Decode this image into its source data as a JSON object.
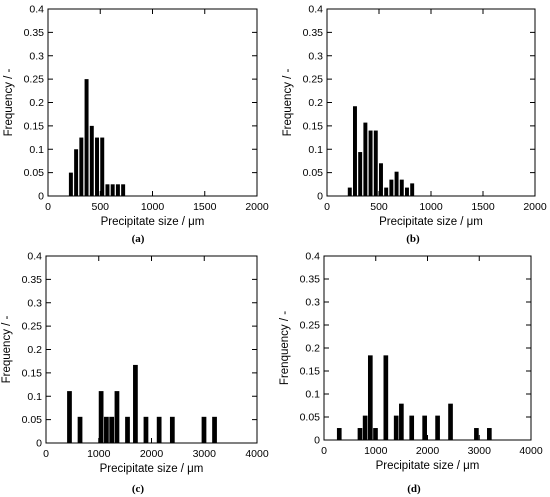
{
  "chart_data": [
    {
      "panel_label": "(a)",
      "type": "bar",
      "xlabel": "Precipitate size / μm",
      "ylabel": "Frequency / -",
      "xlim": [
        0,
        2000
      ],
      "ylim": [
        0,
        0.4
      ],
      "xticks": [
        "0",
        "500",
        "1000",
        "1500",
        "2000"
      ],
      "xtick_values": [
        0,
        500,
        1000,
        1500,
        2000
      ],
      "yticks": [
        "0",
        "0.05",
        "0.1",
        "0.15",
        "0.2",
        "0.25",
        "0.3",
        "0.35",
        "0.4"
      ],
      "ytick_values": [
        0,
        0.05,
        0.1,
        0.15,
        0.2,
        0.25,
        0.3,
        0.35,
        0.4
      ],
      "bar_width": 38,
      "x": [
        200,
        250,
        300,
        350,
        400,
        450,
        500,
        550,
        600,
        650,
        700
      ],
      "values": [
        0.05,
        0.1,
        0.125,
        0.25,
        0.15,
        0.125,
        0.125,
        0.025,
        0.025,
        0.025,
        0.025
      ]
    },
    {
      "panel_label": "(b)",
      "type": "bar",
      "xlabel": "Precipitate size / μm",
      "ylabel": "Frequency / -",
      "xlim": [
        0,
        2000
      ],
      "ylim": [
        0,
        0.4
      ],
      "xticks": [
        "0",
        "500",
        "1000",
        "1500",
        "2000"
      ],
      "xtick_values": [
        0,
        500,
        1000,
        1500,
        2000
      ],
      "yticks": [
        "0",
        "0.05",
        "0.1",
        "0.15",
        "0.2",
        "0.25",
        "0.3",
        "0.35",
        "0.4"
      ],
      "ytick_values": [
        0,
        0.05,
        0.1,
        0.15,
        0.2,
        0.25,
        0.3,
        0.35,
        0.4
      ],
      "bar_width": 38,
      "x": [
        200,
        250,
        300,
        350,
        400,
        450,
        500,
        550,
        600,
        650,
        700,
        750,
        800
      ],
      "values": [
        0.018,
        0.192,
        0.094,
        0.157,
        0.14,
        0.14,
        0.07,
        0.018,
        0.035,
        0.052,
        0.035,
        0.018,
        0.027
      ]
    },
    {
      "panel_label": "(c)",
      "type": "bar",
      "xlabel": "Precipitate size / μm",
      "ylabel": "Frequency / -",
      "xlim": [
        0,
        4000
      ],
      "ylim": [
        0,
        0.4
      ],
      "xticks": [
        "0",
        "1000",
        "2000",
        "3000",
        "4000"
      ],
      "xtick_values": [
        0,
        1000,
        2000,
        3000,
        4000
      ],
      "yticks": [
        "0",
        "0.05",
        "0.1",
        "0.15",
        "0.2",
        "0.25",
        "0.3",
        "0.35",
        "0.4"
      ],
      "ytick_values": [
        0,
        0.05,
        0.1,
        0.15,
        0.2,
        0.25,
        0.3,
        0.35,
        0.4
      ],
      "bar_width": 90,
      "x": [
        400,
        600,
        1000,
        1100,
        1200,
        1300,
        1500,
        1650,
        1850,
        2100,
        2350,
        2950,
        3150
      ],
      "values": [
        0.111,
        0.056,
        0.111,
        0.056,
        0.056,
        0.111,
        0.056,
        0.167,
        0.056,
        0.056,
        0.056,
        0.056,
        0.056
      ]
    },
    {
      "panel_label": "(d)",
      "type": "bar",
      "xlabel": "Precipitate size / μm",
      "ylabel": "Frenquency / -",
      "xlim": [
        0,
        4000
      ],
      "ylim": [
        0,
        0.4
      ],
      "xticks": [
        "0",
        "1000",
        "2000",
        "3000",
        "4000"
      ],
      "xtick_values": [
        0,
        1000,
        2000,
        3000,
        4000
      ],
      "yticks": [
        "0",
        "0.05",
        "0.1",
        "0.15",
        "0.2",
        "0.25",
        "0.3",
        "0.35",
        "0.4"
      ],
      "ytick_values": [
        0,
        0.05,
        0.1,
        0.15,
        0.2,
        0.25,
        0.3,
        0.35,
        0.4
      ],
      "bar_width": 90,
      "x": [
        250,
        650,
        750,
        850,
        950,
        1150,
        1350,
        1450,
        1650,
        1900,
        2150,
        2400,
        2900,
        3150
      ],
      "values": [
        0.026,
        0.026,
        0.053,
        0.184,
        0.026,
        0.184,
        0.053,
        0.079,
        0.053,
        0.053,
        0.053,
        0.079,
        0.026,
        0.026
      ]
    }
  ]
}
